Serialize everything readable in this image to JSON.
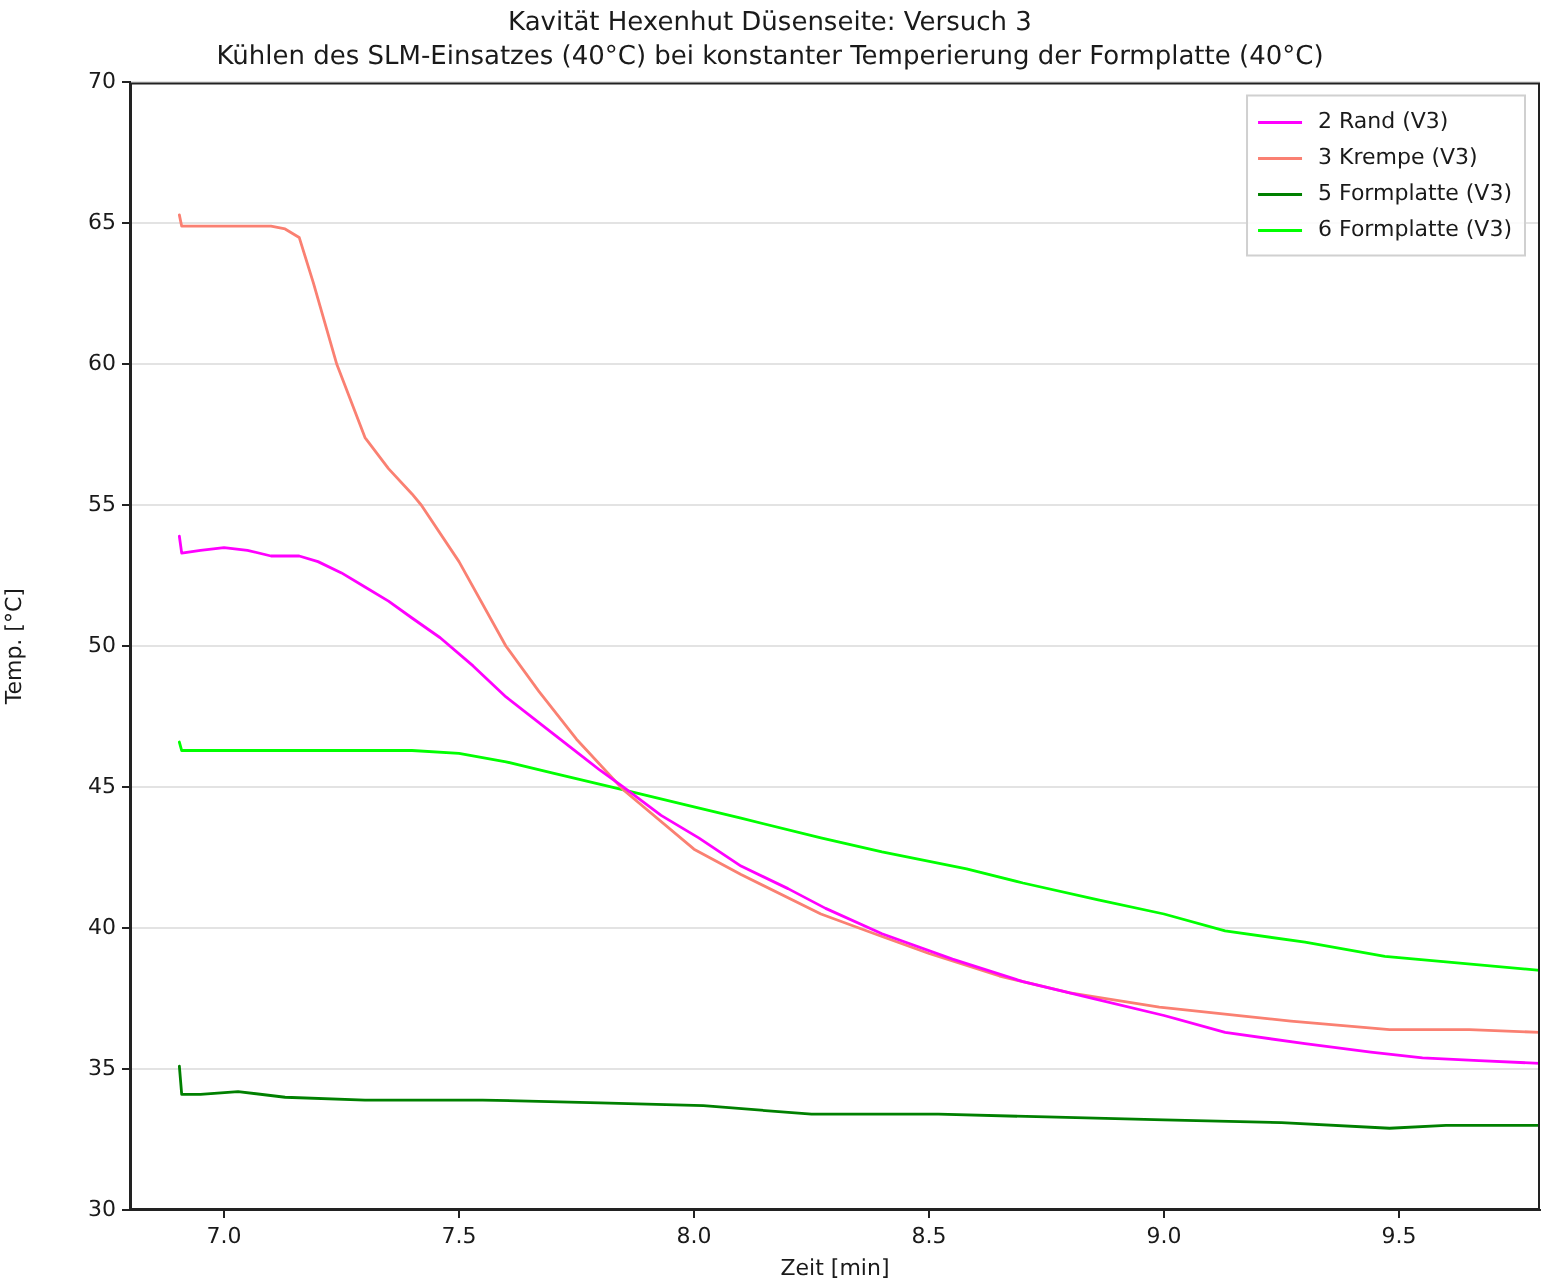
{
  "chart_data": {
    "type": "line",
    "title": "Kavität Hexenhut Düsenseite: Versuch 3",
    "subtitle": "Kühlen des SLM-Einsatzes (40°C) bei konstanter Temperierung der Formplatte (40°C)",
    "xlabel": "Zeit [min]",
    "ylabel": "Temp. [°C]",
    "xlim": [
      6.8,
      9.8
    ],
    "xticks": [
      {
        "value": 7,
        "label": "7.0"
      },
      {
        "value": 7.5,
        "label": "7.5"
      },
      {
        "value": 8,
        "label": "8.0"
      },
      {
        "value": 8.5,
        "label": "8.5"
      },
      {
        "value": 9,
        "label": "9.0"
      },
      {
        "value": 9.5,
        "label": "9.5"
      }
    ],
    "ylim": [
      30,
      70
    ],
    "yticks": [
      30,
      35,
      40,
      45,
      50,
      55,
      60,
      65,
      70
    ],
    "grid": "y",
    "legend": "top right",
    "marker": "none",
    "series": [
      {
        "name": "2 Rand (V3)",
        "color": "#ff00ff",
        "x": [
          6.905,
          6.91,
          6.95,
          7.0,
          7.05,
          7.1,
          7.16,
          7.2,
          7.25,
          7.3,
          7.35,
          7.4,
          7.46,
          7.53,
          7.6,
          7.7,
          7.8,
          7.85,
          7.93,
          8.01,
          8.1,
          8.2,
          8.28,
          8.4,
          8.55,
          8.7,
          8.85,
          9.0,
          9.13,
          9.3,
          9.44,
          9.55,
          9.67,
          9.8
        ],
        "values": [
          53.9,
          53.3,
          53.4,
          53.5,
          53.4,
          53.2,
          53.2,
          53.0,
          52.6,
          52.1,
          51.6,
          51.0,
          50.3,
          49.3,
          48.2,
          46.9,
          45.6,
          45.0,
          44.0,
          43.2,
          42.2,
          41.4,
          40.7,
          39.8,
          38.9,
          38.1,
          37.5,
          36.9,
          36.3,
          35.9,
          35.6,
          35.4,
          35.3,
          35.2
        ]
      },
      {
        "name": "3 Krempe (V3)",
        "color": "#fa8072",
        "x": [
          6.905,
          6.91,
          6.95,
          7.0,
          7.05,
          7.1,
          7.13,
          7.16,
          7.19,
          7.24,
          7.3,
          7.35,
          7.4,
          7.42,
          7.5,
          7.6,
          7.67,
          7.75,
          7.85,
          8.0,
          8.1,
          8.27,
          8.4,
          8.5,
          8.65,
          8.8,
          8.99,
          9.1,
          9.27,
          9.48,
          9.65,
          9.8
        ],
        "values": [
          65.3,
          64.9,
          64.9,
          64.9,
          64.9,
          64.9,
          64.8,
          64.5,
          62.9,
          60.0,
          57.4,
          56.3,
          55.4,
          55.0,
          53.0,
          50.0,
          48.4,
          46.7,
          44.9,
          42.8,
          41.9,
          40.5,
          39.7,
          39.1,
          38.3,
          37.7,
          37.2,
          37.0,
          36.7,
          36.4,
          36.4,
          36.3
        ]
      },
      {
        "name": "5 Formplatte (V3)",
        "color": "#008000",
        "x": [
          6.905,
          6.91,
          6.95,
          7.03,
          7.13,
          7.3,
          7.55,
          7.8,
          8.02,
          8.25,
          8.52,
          8.75,
          9.0,
          9.25,
          9.48,
          9.6,
          9.8
        ],
        "values": [
          35.1,
          34.1,
          34.1,
          34.2,
          34.0,
          33.9,
          33.9,
          33.8,
          33.7,
          33.4,
          33.4,
          33.3,
          33.2,
          33.1,
          32.9,
          33.0,
          33.0
        ]
      },
      {
        "name": "6 Formplatte (V3)",
        "color": "#00ff00",
        "x": [
          6.905,
          6.91,
          7.0,
          7.2,
          7.4,
          7.5,
          7.6,
          7.7,
          7.85,
          8.0,
          8.1,
          8.27,
          8.4,
          8.58,
          8.7,
          8.86,
          9.0,
          9.13,
          9.3,
          9.47,
          9.6,
          9.8
        ],
        "values": [
          46.6,
          46.3,
          46.3,
          46.3,
          46.3,
          46.2,
          45.9,
          45.5,
          44.9,
          44.3,
          43.9,
          43.2,
          42.7,
          42.1,
          41.6,
          41.0,
          40.5,
          39.9,
          39.5,
          39.0,
          38.8,
          38.5
        ]
      }
    ]
  }
}
